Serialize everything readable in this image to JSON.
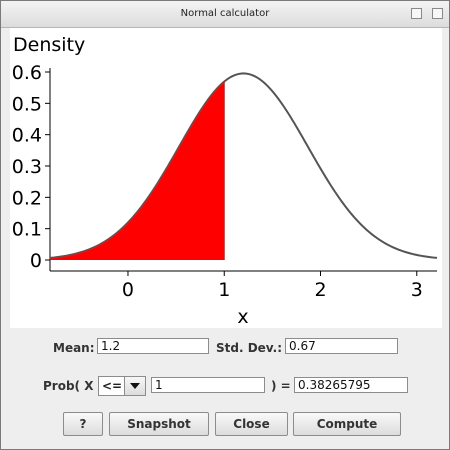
{
  "window": {
    "title": "Normal calculator"
  },
  "chart_data": {
    "type": "area",
    "ylabel": "Density",
    "xlabel": "x",
    "x_ticks": [
      0,
      1,
      2,
      3
    ],
    "y_ticks": [
      0,
      0.1,
      0.2,
      0.3,
      0.4,
      0.5,
      0.6
    ],
    "y_tick_labels": [
      "0",
      "0.1",
      "0.2",
      "0.3",
      "0.4",
      "0.5",
      "0.6"
    ],
    "xlim": [
      -0.81,
      3.21
    ],
    "ylim": [
      0,
      0.6
    ],
    "curve": {
      "type": "normal_pdf",
      "mean": 1.2,
      "sd": 0.67
    },
    "shaded_region": {
      "from": -0.81,
      "to": 1,
      "color": "#ff0000"
    },
    "curve_color": "#555555"
  },
  "form": {
    "mean_label": "Mean:",
    "mean_value": "1.2",
    "sd_label": "Std. Dev.:",
    "sd_value": "0.67",
    "prob_label": "Prob( X",
    "operator": "<=",
    "x_value": "1",
    "equals_label": ") =",
    "result": "0.38265795"
  },
  "buttons": {
    "help": "?",
    "snapshot": "Snapshot",
    "close": "Close",
    "compute": "Compute"
  }
}
